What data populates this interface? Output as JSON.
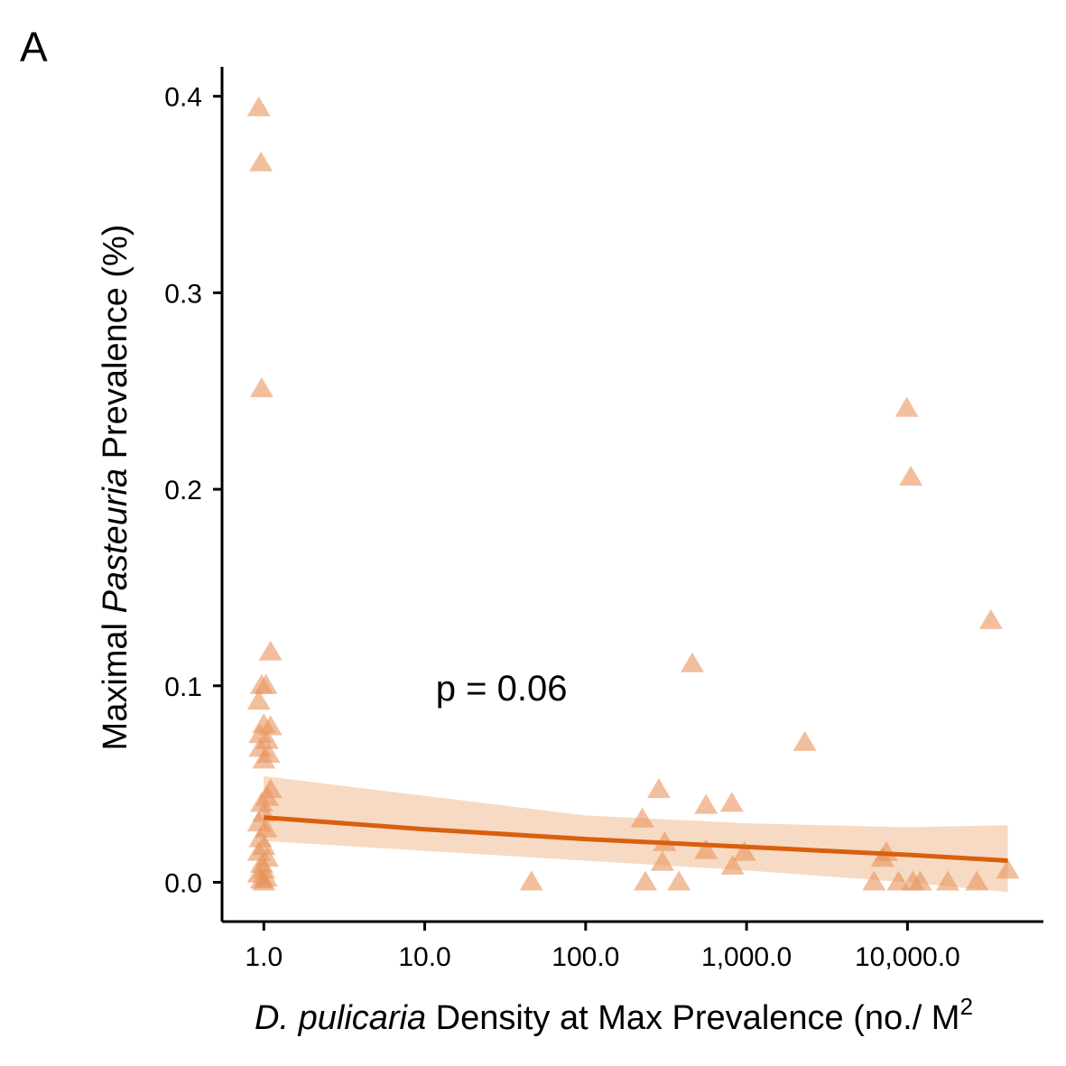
{
  "panel_label": "A",
  "chart_data": {
    "type": "scatter",
    "x_scale": "log10",
    "xlim": [
      0.55,
      70000
    ],
    "ylim": [
      -0.02,
      0.415
    ],
    "xlabel_italic": "D. pulicaria",
    "xlabel_rest": " Density at Max Prevalence (no./ M",
    "xlabel_sup": "2",
    "ylabel_pre": "Maximal  ",
    "ylabel_italic": "Pasteuria",
    "ylabel_post": " Prevalence (%)",
    "x_ticks": [
      {
        "value": 1,
        "label": "1.0"
      },
      {
        "value": 10,
        "label": "10.0"
      },
      {
        "value": 100,
        "label": "100.0"
      },
      {
        "value": 1000,
        "label": "1,000.0"
      },
      {
        "value": 10000,
        "label": "10,000.0"
      }
    ],
    "y_ticks": [
      {
        "value": 0.0,
        "label": "0.0"
      },
      {
        "value": 0.1,
        "label": "0.1"
      },
      {
        "value": 0.2,
        "label": "0.2"
      },
      {
        "value": 0.3,
        "label": "0.3"
      },
      {
        "value": 0.4,
        "label": "0.4"
      }
    ],
    "annotation": {
      "text": "p = 0.06",
      "x": 30,
      "y": 0.099
    },
    "grid": false,
    "marker": "triangle",
    "point_color": "#e8955c",
    "line_color": "#d95f0e",
    "ribbon_color": "#f6d3b8",
    "points": [
      [
        0.93,
        0.394
      ],
      [
        0.96,
        0.366
      ],
      [
        0.97,
        0.251
      ],
      [
        1.1,
        0.117
      ],
      [
        0.97,
        0.1
      ],
      [
        1.03,
        0.1
      ],
      [
        0.93,
        0.092
      ],
      [
        1.0,
        0.08
      ],
      [
        1.1,
        0.079
      ],
      [
        0.95,
        0.075
      ],
      [
        1.05,
        0.072
      ],
      [
        0.95,
        0.068
      ],
      [
        1.07,
        0.065
      ],
      [
        1.0,
        0.062
      ],
      [
        1.1,
        0.047
      ],
      [
        1.05,
        0.043
      ],
      [
        0.97,
        0.04
      ],
      [
        1.0,
        0.035
      ],
      [
        0.93,
        0.03
      ],
      [
        1.03,
        0.027
      ],
      [
        0.95,
        0.022
      ],
      [
        1.0,
        0.018
      ],
      [
        0.93,
        0.015
      ],
      [
        1.05,
        0.012
      ],
      [
        0.97,
        0.009
      ],
      [
        1.0,
        0.006
      ],
      [
        0.93,
        0.004
      ],
      [
        1.03,
        0.002
      ],
      [
        0.97,
        0.001
      ],
      [
        1.0,
        0.0
      ],
      [
        46,
        0.0
      ],
      [
        225,
        0.032
      ],
      [
        235,
        0.0
      ],
      [
        285,
        0.047
      ],
      [
        300,
        0.01
      ],
      [
        310,
        0.02
      ],
      [
        380,
        0.0
      ],
      [
        460,
        0.111
      ],
      [
        560,
        0.039
      ],
      [
        560,
        0.016
      ],
      [
        810,
        0.04
      ],
      [
        820,
        0.008
      ],
      [
        970,
        0.015
      ],
      [
        2300,
        0.071
      ],
      [
        6200,
        0.0
      ],
      [
        7000,
        0.012
      ],
      [
        7400,
        0.015
      ],
      [
        8800,
        0.0
      ],
      [
        9900,
        0.241
      ],
      [
        10500,
        0.206
      ],
      [
        10800,
        0.0
      ],
      [
        12000,
        0.0
      ],
      [
        17800,
        0.0
      ],
      [
        27000,
        0.0
      ],
      [
        33000,
        0.133
      ],
      [
        42000,
        0.006
      ]
    ],
    "fit_line": {
      "x": [
        1,
        10,
        100,
        1000,
        10000,
        42000
      ],
      "y": [
        0.033,
        0.027,
        0.022,
        0.018,
        0.014,
        0.011
      ]
    },
    "ribbon": {
      "x": [
        1,
        10,
        100,
        1000,
        10000,
        42000
      ],
      "lower": [
        0.021,
        0.016,
        0.011,
        0.006,
        0.0,
        -0.005
      ],
      "upper": [
        0.054,
        0.044,
        0.034,
        0.03,
        0.028,
        0.029
      ]
    }
  }
}
